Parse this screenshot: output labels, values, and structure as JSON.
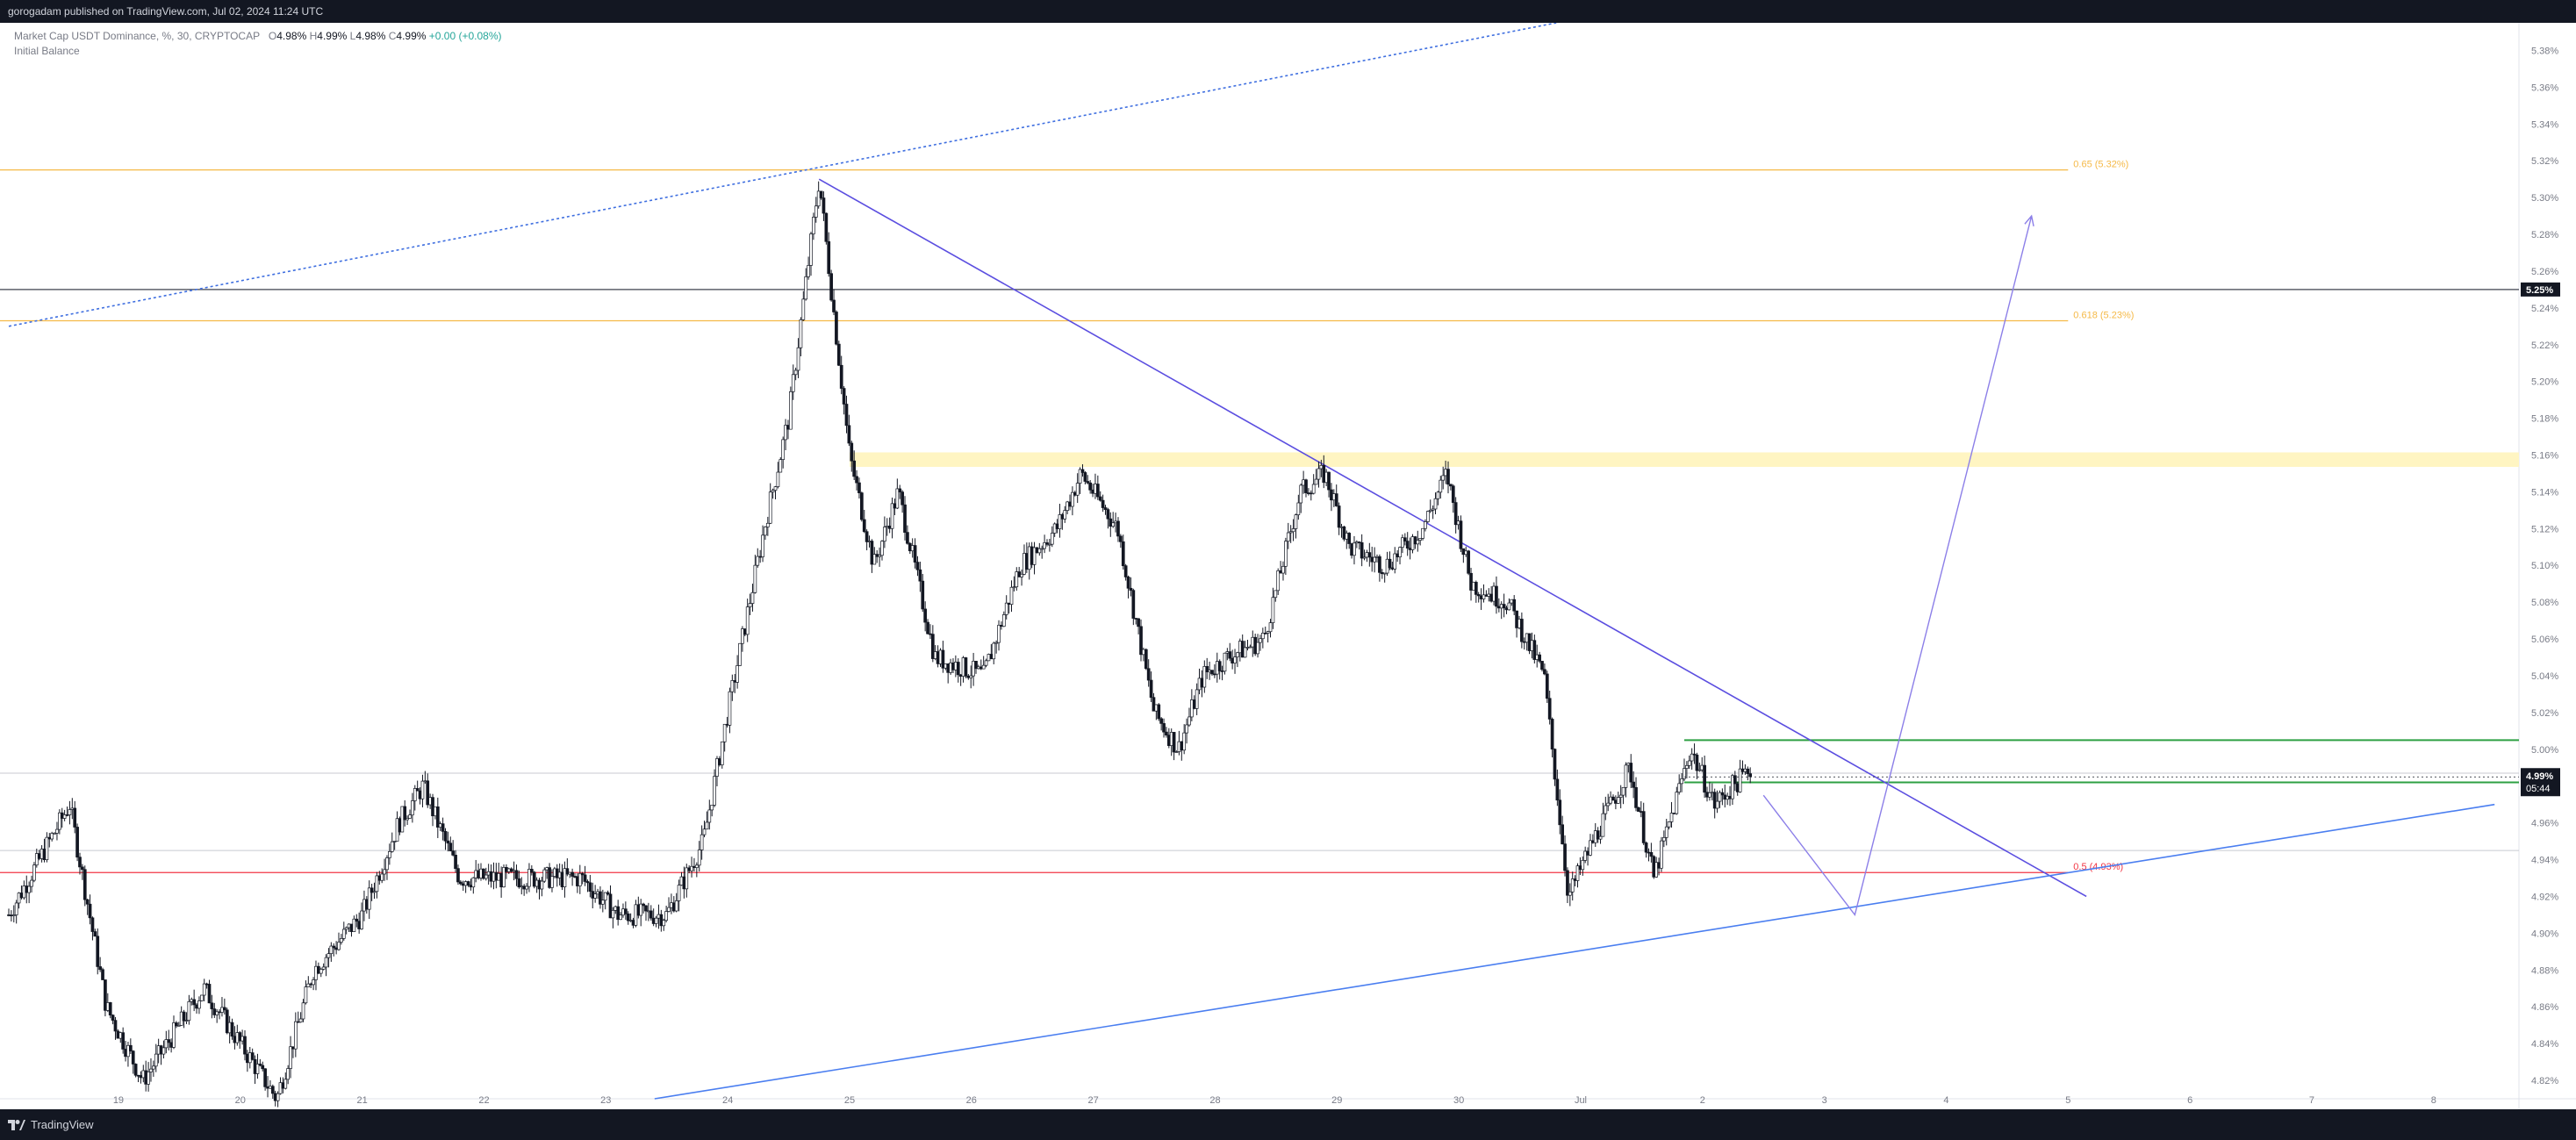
{
  "header": {
    "publish_info": "gorogadam published on TradingView.com, Jul 02, 2024 11:24 UTC"
  },
  "legend": {
    "symbol": "Market Cap USDT Dominance, %, 30, CRYPTOCAP",
    "o_label": "O",
    "o_value": "4.98%",
    "h_label": "H",
    "h_value": "4.99%",
    "l_label": "L",
    "l_value": "4.98%",
    "c_label": "C",
    "c_value": "4.99%",
    "change": "+0.00 (+0.08%)",
    "indicator": "Initial Balance"
  },
  "footer": {
    "brand": "TradingView",
    "logo_icon": "tradingview-logo-icon"
  },
  "colors": {
    "background": "#ffffff",
    "bar": "#131722",
    "fib_orange": "#f5b947",
    "fib_red": "#f23645",
    "trendline_purple": "#5b4ee0",
    "trendline_blue": "#4a7ef0",
    "zone_yellow": "#fff5c2",
    "range_green": "#2ea043"
  },
  "chart_data": {
    "type": "candlestick",
    "timeframe": "30",
    "y_axis_unit": "%",
    "ylim": [
      4.81,
      5.395
    ],
    "y_ticks": [
      "5.38%",
      "5.36%",
      "5.34%",
      "5.32%",
      "5.30%",
      "5.28%",
      "5.26%",
      "5.24%",
      "5.22%",
      "5.20%",
      "5.18%",
      "5.16%",
      "5.14%",
      "5.12%",
      "5.10%",
      "5.08%",
      "5.06%",
      "5.04%",
      "5.02%",
      "5.00%",
      "4.98%",
      "4.96%",
      "4.94%",
      "4.92%",
      "4.90%",
      "4.88%",
      "4.86%",
      "4.84%",
      "4.82%"
    ],
    "x_ticks": [
      "19",
      "20",
      "21",
      "22",
      "23",
      "24",
      "25",
      "26",
      "27",
      "28",
      "29",
      "30",
      "Jul",
      "2",
      "3",
      "4",
      "5",
      "6",
      "7",
      "8"
    ],
    "x_range_days": [
      18.1,
      38.7
    ],
    "price_path": [
      [
        18.1,
        4.91
      ],
      [
        18.6,
        4.97
      ],
      [
        18.9,
        4.86
      ],
      [
        19.2,
        4.82
      ],
      [
        19.7,
        4.87
      ],
      [
        20.3,
        4.81
      ],
      [
        20.6,
        4.88
      ],
      [
        21.0,
        4.91
      ],
      [
        21.3,
        4.96
      ],
      [
        21.5,
        4.98
      ],
      [
        21.8,
        4.93
      ],
      [
        22.3,
        4.93
      ],
      [
        22.8,
        4.93
      ],
      [
        23.1,
        4.91
      ],
      [
        23.5,
        4.91
      ],
      [
        23.8,
        4.95
      ],
      [
        24.0,
        5.02
      ],
      [
        24.3,
        5.12
      ],
      [
        24.5,
        5.18
      ],
      [
        24.75,
        5.31
      ],
      [
        25.0,
        5.16
      ],
      [
        25.2,
        5.1
      ],
      [
        25.4,
        5.14
      ],
      [
        25.7,
        5.05
      ],
      [
        26.1,
        5.04
      ],
      [
        26.4,
        5.1
      ],
      [
        26.7,
        5.12
      ],
      [
        26.9,
        5.15
      ],
      [
        27.2,
        5.12
      ],
      [
        27.5,
        5.02
      ],
      [
        27.7,
        5.0
      ],
      [
        27.9,
        5.04
      ],
      [
        28.1,
        5.05
      ],
      [
        28.4,
        5.06
      ],
      [
        28.7,
        5.14
      ],
      [
        28.9,
        5.15
      ],
      [
        29.1,
        5.11
      ],
      [
        29.4,
        5.1
      ],
      [
        29.7,
        5.12
      ],
      [
        29.9,
        5.15
      ],
      [
        30.1,
        5.09
      ],
      [
        30.4,
        5.08
      ],
      [
        30.7,
        5.04
      ],
      [
        30.9,
        4.92
      ],
      [
        31.1,
        4.95
      ],
      [
        31.4,
        4.99
      ],
      [
        31.6,
        4.93
      ],
      [
        31.9,
        5.0
      ],
      [
        32.1,
        4.97
      ],
      [
        32.4,
        4.99
      ]
    ],
    "levels": [
      {
        "price": 5.315,
        "label": "0.65 (5.32%)",
        "color": "#f5b947"
      },
      {
        "price": 5.233,
        "label": "0.618 (5.23%)",
        "color": "#f5b947"
      },
      {
        "price": 4.933,
        "label": "0.5 (4.93%)",
        "color": "#f23645"
      }
    ],
    "horizontal_lines": [
      {
        "price": 5.25,
        "tag": "5.25%"
      },
      {
        "price": 4.987
      },
      {
        "price": 4.945
      }
    ],
    "current_price": {
      "price": 4.985,
      "tag": "4.99%",
      "countdown": "05:44"
    },
    "supply_zone": {
      "from_day": 25.0,
      "price_low": 5.155,
      "price_high": 5.16
    },
    "range_box": {
      "from_day": 31.85,
      "price_high": 5.005,
      "price_low": 4.982
    },
    "trendlines": [
      {
        "name": "descending",
        "from": [
          24.75,
          5.31
        ],
        "to": [
          35.15,
          4.92
        ]
      },
      {
        "name": "ascending-support",
        "from": [
          23.4,
          4.81
        ],
        "to": [
          38.5,
          4.97
        ]
      },
      {
        "name": "upper-channel",
        "from": [
          18.1,
          5.23
        ],
        "to": [
          30.8,
          5.395
        ]
      }
    ],
    "projection_path": [
      [
        32.5,
        4.975
      ],
      [
        33.25,
        4.91
      ],
      [
        34.7,
        5.29
      ]
    ]
  }
}
